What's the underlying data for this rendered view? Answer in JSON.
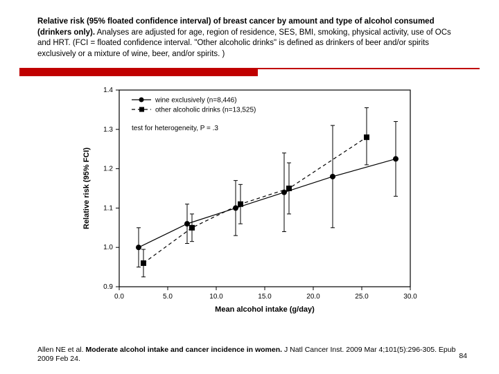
{
  "header": {
    "bold1": "Relative risk (95% floated confidence interval) of breast cancer by amount and type of alcohol consumed (drinkers only).",
    "rest": " Analyses are adjusted for age, region of residence, SES, BMI, smoking, physical activity, use of OCs and HRT. (FCI = floated confidence interval. \"Other alcoholic drinks\" is defined as drinkers of beer and/or spirits exclusively or a mixture of wine, beer, and/or spirits. )"
  },
  "chart": {
    "xlabel": "Mean alcohol intake (g/day)",
    "ylabel": "Relative risk (95% FCI)",
    "xlim": [
      0,
      30
    ],
    "xtick_step": 5,
    "ylim": [
      0.9,
      1.4
    ],
    "ytick_step": 0.1,
    "axis_color": "#000000",
    "background_color": "#ffffff",
    "label_fontsize": 11,
    "tick_fontsize": 10,
    "legend": {
      "items": [
        {
          "label": "wine exclusively (n=8,446)",
          "marker": "circle",
          "dash": "solid"
        },
        {
          "label": "other alcoholic drinks (n=13,525)",
          "marker": "square",
          "dash": "dashed"
        }
      ],
      "note": "test for heterogeneity, P = .3",
      "fontsize": 10
    },
    "series": [
      {
        "name": "wine",
        "marker": "circle",
        "marker_size": 4,
        "line_dash": "solid",
        "line_width": 1.2,
        "color": "#000000",
        "points": [
          {
            "x": 2.0,
            "y": 1.0,
            "lo": 0.95,
            "hi": 1.05
          },
          {
            "x": 7.0,
            "y": 1.06,
            "lo": 1.01,
            "hi": 1.11
          },
          {
            "x": 12.0,
            "y": 1.1,
            "lo": 1.03,
            "hi": 1.17
          },
          {
            "x": 17.0,
            "y": 1.14,
            "lo": 1.04,
            "hi": 1.24
          },
          {
            "x": 22.0,
            "y": 1.18,
            "lo": 1.05,
            "hi": 1.31
          },
          {
            "x": 28.5,
            "y": 1.225,
            "lo": 1.13,
            "hi": 1.32
          }
        ]
      },
      {
        "name": "other",
        "marker": "square",
        "marker_size": 4,
        "line_dash": "dashed",
        "line_width": 1.2,
        "color": "#000000",
        "points": [
          {
            "x": 2.5,
            "y": 0.96,
            "lo": 0.925,
            "hi": 0.995
          },
          {
            "x": 7.5,
            "y": 1.05,
            "lo": 1.015,
            "hi": 1.085
          },
          {
            "x": 12.5,
            "y": 1.11,
            "lo": 1.06,
            "hi": 1.16
          },
          {
            "x": 17.5,
            "y": 1.15,
            "lo": 1.085,
            "hi": 1.215
          },
          {
            "x": 25.5,
            "y": 1.28,
            "lo": 1.21,
            "hi": 1.355
          }
        ]
      }
    ]
  },
  "citation": {
    "authors": "Allen NE et al. ",
    "title": "Moderate alcohol intake and cancer incidence in women.",
    "suffix": " J Natl Cancer Inst. 2009 Mar 4;101(5):296-305. Epub 2009 Feb 24."
  },
  "slide_number": "84"
}
